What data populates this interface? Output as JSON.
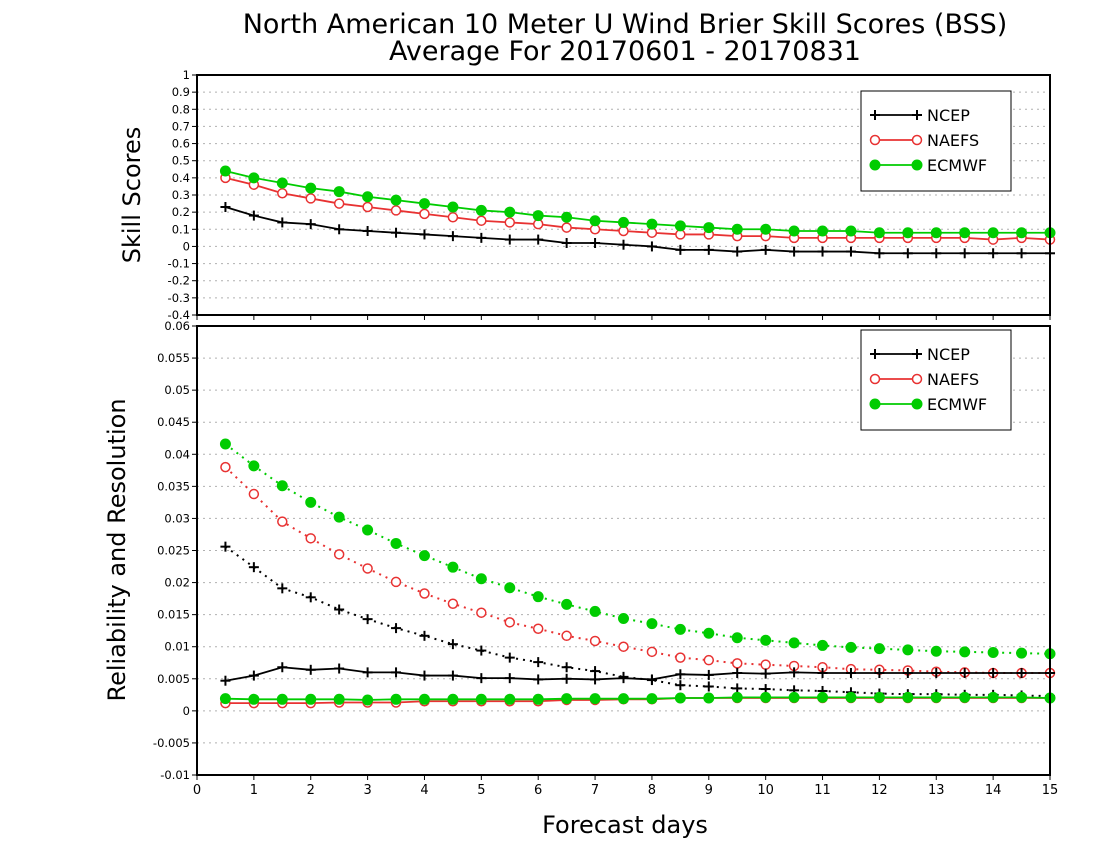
{
  "page": {
    "title_line1": "North American 10 Meter U Wind Brier Skill Scores (BSS)",
    "title_line2": "Average For 20170601 - 20170831",
    "xlabel": "Forecast days"
  },
  "chart_data": [
    {
      "id": "bss",
      "type": "line",
      "ylabel": "Skill Scores",
      "xlim": [
        0,
        15
      ],
      "ylim": [
        -0.4,
        1
      ],
      "yticks": [
        "1",
        "0.9",
        "0.8",
        "0.7",
        "0.6",
        "0.5",
        "0.4",
        "0.3",
        "0.2",
        "0.1",
        "0",
        "-0.1",
        "-0.2",
        "-0.3",
        "-0.4"
      ],
      "grid": true,
      "legend_position": "top-right",
      "x": [
        0.5,
        1,
        1.5,
        2,
        2.5,
        3,
        3.5,
        4,
        4.5,
        5,
        5.5,
        6,
        6.5,
        7,
        7.5,
        8,
        8.5,
        9,
        9.5,
        10,
        10.5,
        11,
        11.5,
        12,
        12.5,
        13,
        13.5,
        14,
        14.5,
        15
      ],
      "series": [
        {
          "name": "NCEP",
          "style": "solid",
          "marker": "plus",
          "color": "#000000",
          "values": [
            0.23,
            0.18,
            0.14,
            0.13,
            0.1,
            0.09,
            0.08,
            0.07,
            0.06,
            0.05,
            0.04,
            0.04,
            0.02,
            0.02,
            0.01,
            0.0,
            -0.02,
            -0.02,
            -0.03,
            -0.02,
            -0.03,
            -0.03,
            -0.03,
            -0.04,
            -0.04,
            -0.04,
            -0.04,
            -0.04,
            -0.04,
            -0.04
          ]
        },
        {
          "name": "NAEFS",
          "style": "solid",
          "marker": "open-circle",
          "color": "#e83232",
          "values": [
            0.4,
            0.36,
            0.31,
            0.28,
            0.25,
            0.23,
            0.21,
            0.19,
            0.17,
            0.15,
            0.14,
            0.13,
            0.11,
            0.1,
            0.09,
            0.08,
            0.07,
            0.07,
            0.06,
            0.06,
            0.05,
            0.05,
            0.05,
            0.05,
            0.05,
            0.05,
            0.05,
            0.04,
            0.05,
            0.04
          ]
        },
        {
          "name": "ECMWF",
          "style": "solid",
          "marker": "filled-circle",
          "color": "#00cc00",
          "values": [
            0.44,
            0.4,
            0.37,
            0.34,
            0.32,
            0.29,
            0.27,
            0.25,
            0.23,
            0.21,
            0.2,
            0.18,
            0.17,
            0.15,
            0.14,
            0.13,
            0.12,
            0.11,
            0.1,
            0.1,
            0.09,
            0.09,
            0.09,
            0.08,
            0.08,
            0.08,
            0.08,
            0.08,
            0.08,
            0.08
          ]
        }
      ]
    },
    {
      "id": "relres",
      "type": "line",
      "ylabel": "Reliability and Resolution",
      "xlim": [
        0,
        15
      ],
      "ylim": [
        -0.01,
        0.06
      ],
      "yticks": [
        "0.06",
        "0.055",
        "0.05",
        "0.045",
        "0.04",
        "0.035",
        "0.03",
        "0.025",
        "0.02",
        "0.015",
        "0.01",
        "0.005",
        "0",
        "-0.005",
        "-0.01"
      ],
      "xticks": [
        "0",
        "1",
        "2",
        "3",
        "4",
        "5",
        "6",
        "7",
        "8",
        "9",
        "10",
        "11",
        "12",
        "13",
        "14",
        "15"
      ],
      "grid": true,
      "legend_position": "top-right",
      "x": [
        0.5,
        1,
        1.5,
        2,
        2.5,
        3,
        3.5,
        4,
        4.5,
        5,
        5.5,
        6,
        6.5,
        7,
        7.5,
        8,
        8.5,
        9,
        9.5,
        10,
        10.5,
        11,
        11.5,
        12,
        12.5,
        13,
        13.5,
        14,
        14.5,
        15
      ],
      "series": [
        {
          "name": "NCEP",
          "component": "resolution",
          "style": "dotted",
          "marker": "plus",
          "color": "#000000",
          "values": [
            0.0256,
            0.0224,
            0.0191,
            0.0177,
            0.0158,
            0.0143,
            0.0129,
            0.0117,
            0.0104,
            0.0094,
            0.0083,
            0.0076,
            0.0068,
            0.0062,
            0.0053,
            0.0048,
            0.004,
            0.0038,
            0.0035,
            0.0034,
            0.0032,
            0.0031,
            0.0029,
            0.0027,
            0.0026,
            0.0026,
            0.0025,
            0.0025,
            0.0024,
            0.0023
          ]
        },
        {
          "name": "NAEFS",
          "component": "resolution",
          "style": "dotted",
          "marker": "open-circle",
          "color": "#e83232",
          "values": [
            0.038,
            0.0338,
            0.0295,
            0.0269,
            0.0244,
            0.0222,
            0.0201,
            0.0183,
            0.0167,
            0.0153,
            0.0138,
            0.0128,
            0.0117,
            0.0109,
            0.01,
            0.0092,
            0.0083,
            0.0079,
            0.0074,
            0.0072,
            0.007,
            0.0068,
            0.0065,
            0.0064,
            0.0063,
            0.0061,
            0.006,
            0.0059,
            0.0059,
            0.0059
          ]
        },
        {
          "name": "ECMWF",
          "component": "resolution",
          "style": "dotted",
          "marker": "filled-circle",
          "color": "#00cc00",
          "values": [
            0.0416,
            0.0382,
            0.0351,
            0.0325,
            0.0302,
            0.0282,
            0.0261,
            0.0242,
            0.0224,
            0.0206,
            0.0192,
            0.0178,
            0.0166,
            0.0155,
            0.0144,
            0.0136,
            0.0127,
            0.0121,
            0.0114,
            0.011,
            0.0106,
            0.0102,
            0.0099,
            0.0097,
            0.0095,
            0.0093,
            0.0092,
            0.0091,
            0.009,
            0.0089
          ]
        },
        {
          "name": "NCEP",
          "component": "reliability",
          "style": "solid",
          "marker": "plus",
          "color": "#000000",
          "values": [
            0.0047,
            0.0055,
            0.0068,
            0.0064,
            0.0066,
            0.006,
            0.006,
            0.0055,
            0.0055,
            0.0051,
            0.0051,
            0.0049,
            0.005,
            0.0049,
            0.0051,
            0.0049,
            0.0057,
            0.0056,
            0.0059,
            0.0058,
            0.006,
            0.0059,
            0.0059,
            0.0059,
            0.0059,
            0.0059,
            0.0059,
            0.0059,
            0.0059,
            0.0059
          ]
        },
        {
          "name": "NAEFS",
          "component": "reliability",
          "style": "solid",
          "marker": "open-circle",
          "color": "#e83232",
          "values": [
            0.0012,
            0.0012,
            0.0012,
            0.0012,
            0.0013,
            0.0013,
            0.0013,
            0.0015,
            0.0015,
            0.0015,
            0.0015,
            0.0015,
            0.0017,
            0.0017,
            0.0018,
            0.0018,
            0.002,
            0.002,
            0.002,
            0.002,
            0.002,
            0.002,
            0.002,
            0.002,
            0.002,
            0.002,
            0.002,
            0.002,
            0.002,
            0.002
          ]
        },
        {
          "name": "ECMWF",
          "component": "reliability",
          "style": "solid",
          "marker": "filled-circle",
          "color": "#00cc00",
          "values": [
            0.0019,
            0.0018,
            0.0018,
            0.0018,
            0.0018,
            0.0017,
            0.0018,
            0.0018,
            0.0018,
            0.0018,
            0.0018,
            0.0018,
            0.0019,
            0.0019,
            0.0019,
            0.0019,
            0.002,
            0.002,
            0.0021,
            0.0021,
            0.0021,
            0.0021,
            0.0021,
            0.0021,
            0.0021,
            0.0021,
            0.0021,
            0.0021,
            0.0021,
            0.002
          ]
        }
      ]
    }
  ]
}
